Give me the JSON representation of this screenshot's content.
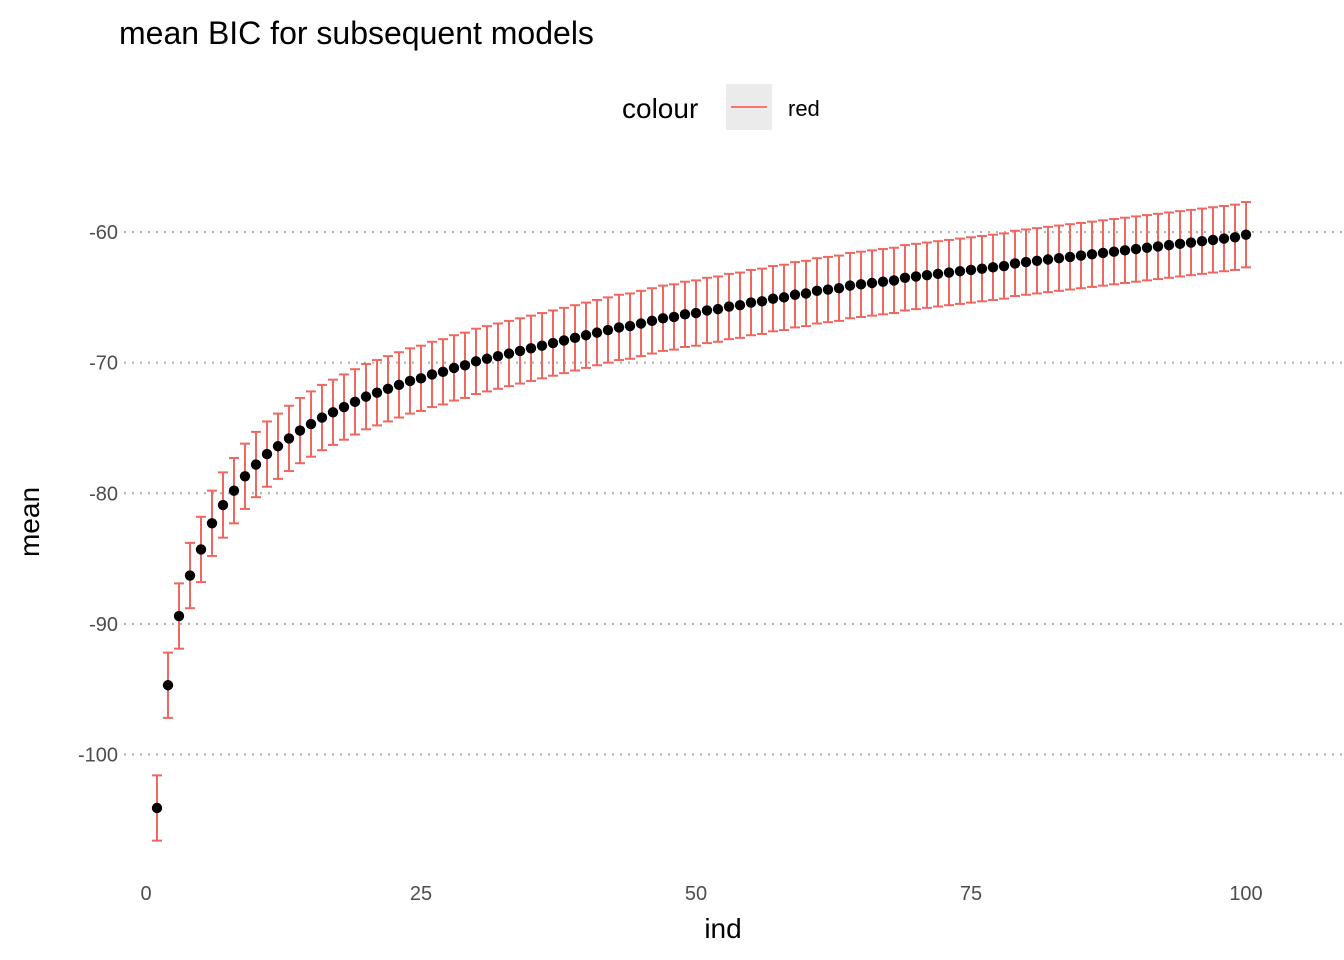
{
  "chart_data": {
    "type": "scatter",
    "title": "mean BIC for subsequent models",
    "xlabel": "ind",
    "ylabel": "mean",
    "legend": {
      "title": "colour",
      "entries": [
        {
          "label": "red",
          "color": "#F8766D"
        }
      ],
      "position": "top"
    },
    "xlim": [
      -2,
      104
    ],
    "ylim": [
      -109,
      -55.4
    ],
    "xticks": [
      0,
      25,
      50,
      75,
      100
    ],
    "yticks": [
      -60,
      -70,
      -80,
      -90,
      -100
    ],
    "grid": "horizontal-major-dotted",
    "point_color": "#000000",
    "errorbar_color": "#F8766D",
    "error_half_width": 2.5,
    "x": [
      1,
      2,
      3,
      4,
      5,
      6,
      7,
      8,
      9,
      10,
      11,
      12,
      13,
      14,
      15,
      16,
      17,
      18,
      19,
      20,
      21,
      22,
      23,
      24,
      25,
      26,
      27,
      28,
      29,
      30,
      31,
      32,
      33,
      34,
      35,
      36,
      37,
      38,
      39,
      40,
      41,
      42,
      43,
      44,
      45,
      46,
      47,
      48,
      49,
      50,
      51,
      52,
      53,
      54,
      55,
      56,
      57,
      58,
      59,
      60,
      61,
      62,
      63,
      64,
      65,
      66,
      67,
      68,
      69,
      70,
      71,
      72,
      73,
      74,
      75,
      76,
      77,
      78,
      79,
      80,
      81,
      82,
      83,
      84,
      85,
      86,
      87,
      88,
      89,
      90,
      91,
      92,
      93,
      94,
      95,
      96,
      97,
      98,
      99,
      100
    ],
    "y": [
      -104.1,
      -94.7,
      -89.4,
      -86.3,
      -84.3,
      -82.3,
      -80.9,
      -79.8,
      -78.7,
      -77.8,
      -77.0,
      -76.4,
      -75.8,
      -75.2,
      -74.7,
      -74.2,
      -73.8,
      -73.4,
      -73.0,
      -72.6,
      -72.3,
      -72.0,
      -71.7,
      -71.4,
      -71.2,
      -70.9,
      -70.7,
      -70.4,
      -70.2,
      -69.9,
      -69.7,
      -69.5,
      -69.3,
      -69.1,
      -68.9,
      -68.7,
      -68.5,
      -68.3,
      -68.1,
      -67.9,
      -67.7,
      -67.5,
      -67.3,
      -67.2,
      -67.0,
      -66.8,
      -66.6,
      -66.5,
      -66.3,
      -66.2,
      -66.0,
      -65.9,
      -65.7,
      -65.6,
      -65.4,
      -65.3,
      -65.1,
      -65.0,
      -64.8,
      -64.7,
      -64.5,
      -64.4,
      -64.3,
      -64.1,
      -64.0,
      -63.9,
      -63.8,
      -63.7,
      -63.5,
      -63.4,
      -63.3,
      -63.2,
      -63.1,
      -63.0,
      -62.9,
      -62.8,
      -62.7,
      -62.6,
      -62.4,
      -62.3,
      -62.2,
      -62.1,
      -62.0,
      -61.9,
      -61.8,
      -61.7,
      -61.6,
      -61.5,
      -61.4,
      -61.3,
      -61.2,
      -61.1,
      -61.0,
      -60.9,
      -60.8,
      -60.7,
      -60.6,
      -60.5,
      -60.4,
      -60.2
    ]
  }
}
